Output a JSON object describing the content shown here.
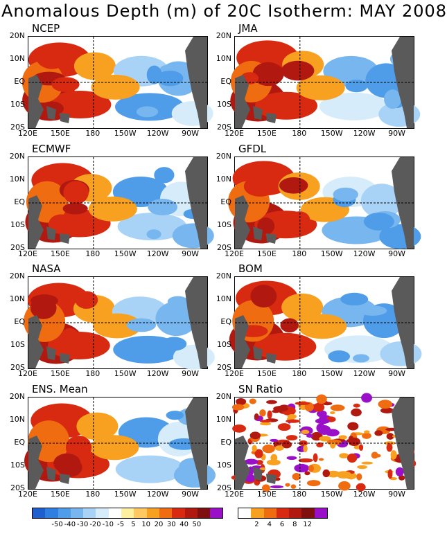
{
  "title": "Anomalous Depth (m) of 20C Isotherm: MAY 2008",
  "panels": [
    {
      "label": "NCEP"
    },
    {
      "label": "JMA"
    },
    {
      "label": "ECMWF"
    },
    {
      "label": "GFDL"
    },
    {
      "label": "NASA"
    },
    {
      "label": "BOM"
    },
    {
      "label": "ENS. Mean"
    },
    {
      "label": "SN Ratio"
    }
  ],
  "lat_labels": [
    "20N",
    "10N",
    "EQ",
    "10S",
    "20S"
  ],
  "lon_labels": [
    "120E",
    "150E",
    "180",
    "150W",
    "120W",
    "90W"
  ],
  "anomaly_colorbar": {
    "colors": [
      "#1e5fd0",
      "#2f7fe0",
      "#4f9ce8",
      "#78b6ef",
      "#a8d3f6",
      "#d6ecfb",
      "#ffffff",
      "#fff0a0",
      "#ffc860",
      "#f8a020",
      "#f06c10",
      "#d82a10",
      "#b01810",
      "#801010",
      "#9a10c8"
    ],
    "labels": [
      "-50",
      "-40",
      "-30",
      "-20",
      "-10",
      "-5",
      "5",
      "10",
      "20",
      "30",
      "40",
      "50"
    ]
  },
  "sn_colorbar": {
    "colors": [
      "#ffffff",
      "#f8a020",
      "#f06c10",
      "#d82a10",
      "#b01810",
      "#801010",
      "#9a10c8"
    ],
    "labels": [
      "2",
      "4",
      "6",
      "8",
      "12"
    ]
  }
}
